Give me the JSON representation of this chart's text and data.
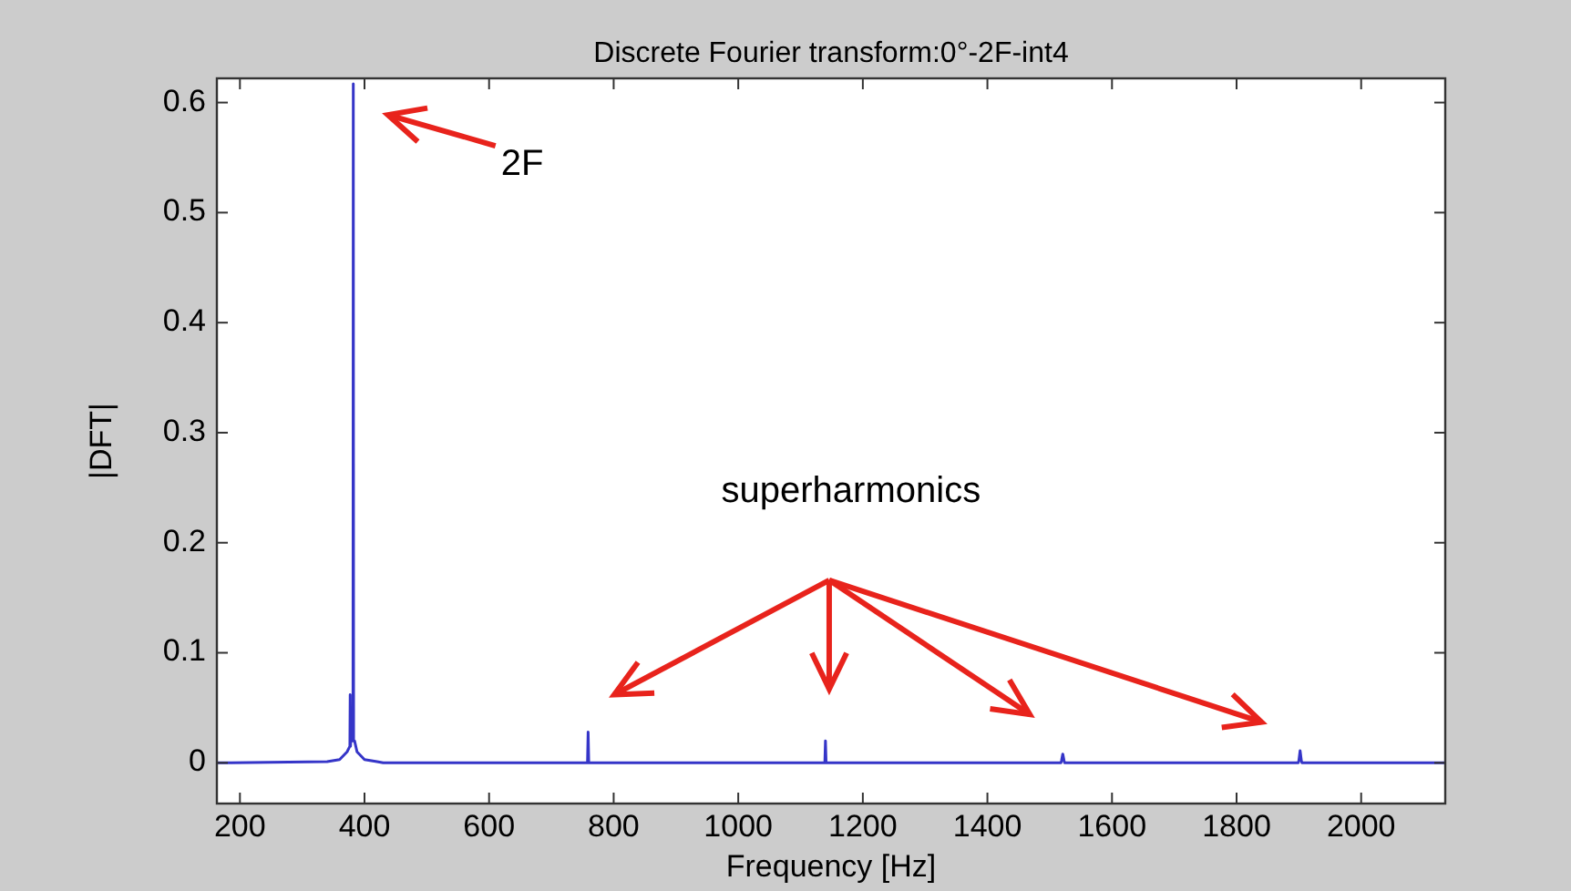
{
  "chart_data": {
    "type": "line",
    "title": "Discrete Fourier transform:0°-2F-int4",
    "xlabel": "Frequency [Hz]",
    "ylabel": "|DFT|",
    "xlim": [
      163,
      2135
    ],
    "ylim": [
      -0.037,
      0.622
    ],
    "xticks": [
      200,
      400,
      600,
      800,
      1000,
      1200,
      1400,
      1600,
      1800,
      2000
    ],
    "yticks": [
      0,
      0.1,
      0.2,
      0.3,
      0.4,
      0.5,
      0.6
    ],
    "grid": false,
    "line_style": "solid",
    "series": [
      {
        "color": "#3535c8",
        "x": [
          163,
          340,
          360,
          372,
          376.5,
          377,
          377.5,
          378,
          380,
          381.5,
          382,
          382.5,
          384,
          388,
          400,
          420,
          430,
          757,
          758,
          759,
          760,
          761,
          1138,
          1139,
          1140,
          1141,
          1142,
          1518,
          1519,
          1521,
          1523,
          1524,
          1899,
          1900,
          1902,
          1904,
          1905,
          2135
        ],
        "values": [
          0,
          0.001,
          0.003,
          0.01,
          0.015,
          0.062,
          0.015,
          0.02,
          0.02,
          0.02,
          0.617,
          0.02,
          0.02,
          0.01,
          0.003,
          0.001,
          0,
          0,
          0,
          0.028,
          0,
          0,
          0,
          0,
          0.02,
          0,
          0,
          0,
          0.002,
          0.008,
          0.002,
          0,
          0,
          0.002,
          0.011,
          0.002,
          0,
          0
        ]
      }
    ],
    "annotations": [
      "2F",
      "superharmonics"
    ]
  }
}
